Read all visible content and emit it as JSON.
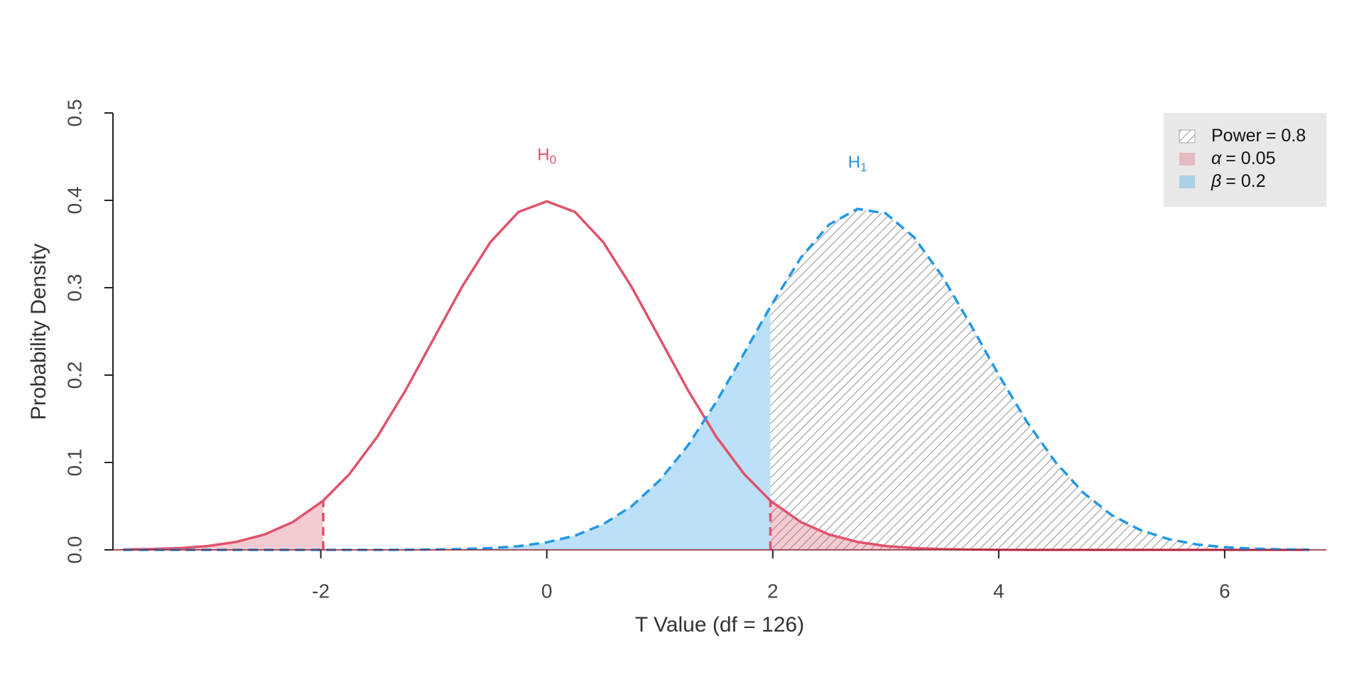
{
  "chart_data": {
    "type": "density",
    "x_label": "T Value (df = 126)",
    "y_label": "Probability Density",
    "xlim": [
      -3.84,
      6.9
    ],
    "ylim": [
      0,
      0.5
    ],
    "xticks": [
      -2,
      0,
      2,
      4,
      6
    ],
    "yticks": [
      {
        "value": 0,
        "label": "0.0"
      },
      0.1,
      0.2,
      0.3,
      0.4,
      0.5
    ],
    "critical_values": [
      -1.979,
      1.979
    ],
    "x": [
      -3.75,
      -3.5,
      -3.25,
      -3,
      -2.75,
      -2.5,
      -2.25,
      -1.979,
      -1.75,
      -1.5,
      -1.25,
      -1,
      -0.75,
      -0.5,
      -0.25,
      0,
      0.25,
      0.5,
      0.75,
      1,
      1.25,
      1.5,
      1.75,
      1.979,
      2.25,
      2.5,
      2.75,
      3,
      3.25,
      3.5,
      3.75,
      4,
      4.25,
      4.5,
      4.75,
      5,
      5.25,
      5.5,
      5.75,
      6,
      6.25,
      6.5,
      6.75
    ],
    "series": [
      {
        "label": {
          "text": "H",
          "subscript": "0"
        },
        "color": "#df536b",
        "dashed": false,
        "values": [
          0.0004,
          0.0009,
          0.002,
          0.0044,
          0.0091,
          0.0175,
          0.0317,
          0.0563,
          0.0863,
          0.1295,
          0.1826,
          0.242,
          0.3011,
          0.3521,
          0.3867,
          0.3989,
          0.3867,
          0.3521,
          0.3011,
          0.242,
          0.1826,
          0.1295,
          0.0863,
          0.0563,
          0.0317,
          0.0175,
          0.0091,
          0.0044,
          0.002,
          0.0009,
          0.0004,
          0.0001,
          0,
          0,
          0,
          0,
          0,
          0,
          0,
          0,
          0,
          0,
          0
        ]
      },
      {
        "label": {
          "text": "H",
          "subscript": "1"
        },
        "color": "#2297e6",
        "dashed": true,
        "values": [
          0,
          0,
          0,
          0,
          0,
          0,
          0,
          0,
          0,
          0,
          0.0001,
          0.0004,
          0.0009,
          0.002,
          0.0042,
          0.0086,
          0.0163,
          0.0294,
          0.0499,
          0.0796,
          0.1196,
          0.1693,
          0.2257,
          0.2784,
          0.3346,
          0.3724,
          0.3902,
          0.3851,
          0.3579,
          0.3132,
          0.258,
          0.2003,
          0.1464,
          0.1008,
          0.0653,
          0.0398,
          0.0229,
          0.0124,
          0.0063,
          0.003,
          0.0014,
          0.0006,
          0.0002
        ]
      }
    ],
    "legend": {
      "position": "top-right",
      "items": [
        {
          "symbol": "Power",
          "text": "= 0.8",
          "italic": false,
          "color": "#999999",
          "hatch": true
        },
        {
          "symbol": "α",
          "text": "= 0.05",
          "italic": true,
          "color": "#df536b",
          "hatch": false
        },
        {
          "symbol": "β",
          "text": "= 0.2",
          "italic": true,
          "color": "#2297e6",
          "hatch": false
        }
      ]
    }
  }
}
